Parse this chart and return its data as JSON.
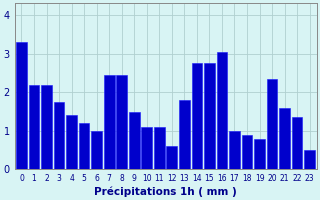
{
  "hours": [
    0,
    1,
    2,
    3,
    4,
    5,
    6,
    7,
    8,
    9,
    10,
    11,
    12,
    13,
    14,
    15,
    16,
    17,
    18,
    19,
    20,
    21,
    22,
    23
  ],
  "vals": [
    3.3,
    2.2,
    2.2,
    1.75,
    1.4,
    1.2,
    1.0,
    2.45,
    2.45,
    1.5,
    1.1,
    1.1,
    0.6,
    1.8,
    2.75,
    2.75,
    3.05,
    1.0,
    0.9,
    0.8,
    2.35,
    1.6,
    1.35,
    0.5
  ],
  "bar_color": "#0000cc",
  "bar_edge_color": "#1a1aff",
  "background_color": "#d8f4f4",
  "grid_color": "#b0d0d0",
  "xlabel": "Précipitations 1h ( mm )",
  "ylim": [
    0,
    4.3
  ],
  "yticks": [
    0,
    1,
    2,
    3,
    4
  ],
  "xlabel_color": "#00008b",
  "tick_color": "#00008b",
  "spine_color": "#888888"
}
